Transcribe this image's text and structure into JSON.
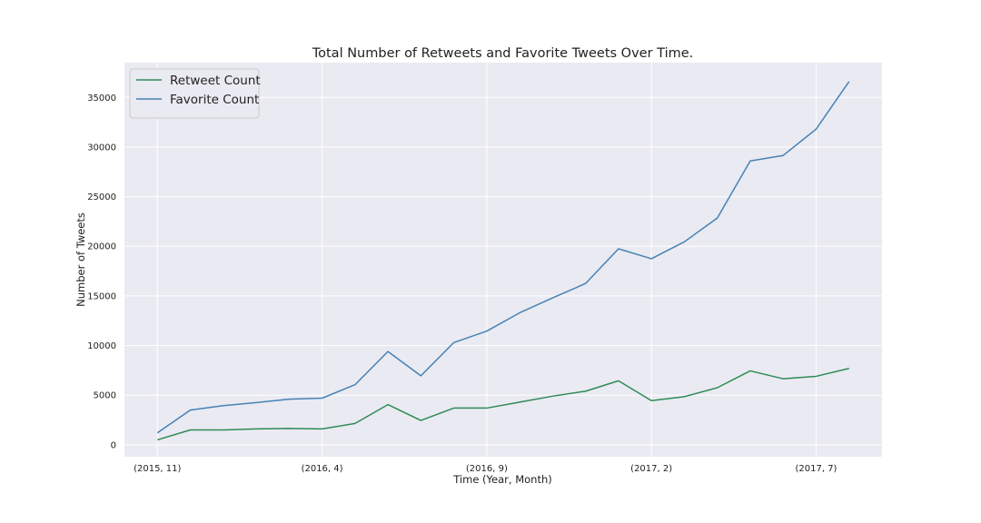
{
  "chart_data": {
    "type": "line",
    "title": "Total Number of Retweets and Favorite Tweets Over Time.",
    "xlabel": "Time (Year, Month)",
    "ylabel": "Number of Tweets",
    "x": [
      0,
      1,
      2,
      3,
      4,
      5,
      6,
      7,
      8,
      9,
      10,
      11,
      12,
      13,
      14,
      15,
      16,
      17,
      18,
      19,
      20,
      21
    ],
    "x_ticks": [
      {
        "x": 0,
        "label": "(2015, 11)"
      },
      {
        "x": 5,
        "label": "(2016, 4)"
      },
      {
        "x": 10,
        "label": "(2016, 9)"
      },
      {
        "x": 15,
        "label": "(2017, 2)"
      },
      {
        "x": 20,
        "label": "(2017, 7)"
      }
    ],
    "xlim": [
      -1,
      22
    ],
    "ylim": [
      -1200,
      38500
    ],
    "y_ticks": [
      0,
      5000,
      10000,
      15000,
      20000,
      25000,
      30000,
      35000
    ],
    "grid": true,
    "legend_position": "top-left",
    "background_color": "#eaeaf2",
    "series": [
      {
        "name": "Retweet Count",
        "color": "#2e8b57",
        "values": [
          500,
          1500,
          1500,
          1600,
          1650,
          1600,
          2150,
          4050,
          2450,
          3700,
          3700,
          4300,
          4900,
          5400,
          6450,
          4450,
          4850,
          5750,
          7450,
          6650,
          6900,
          7700
        ]
      },
      {
        "name": "Favorite Count",
        "color": "#4682b4",
        "values": [
          1200,
          3500,
          3950,
          4250,
          4600,
          4700,
          6050,
          9400,
          6950,
          10300,
          11450,
          13300,
          14800,
          16250,
          19750,
          18750,
          20450,
          22850,
          28600,
          29150,
          31800,
          36600
        ]
      }
    ]
  }
}
